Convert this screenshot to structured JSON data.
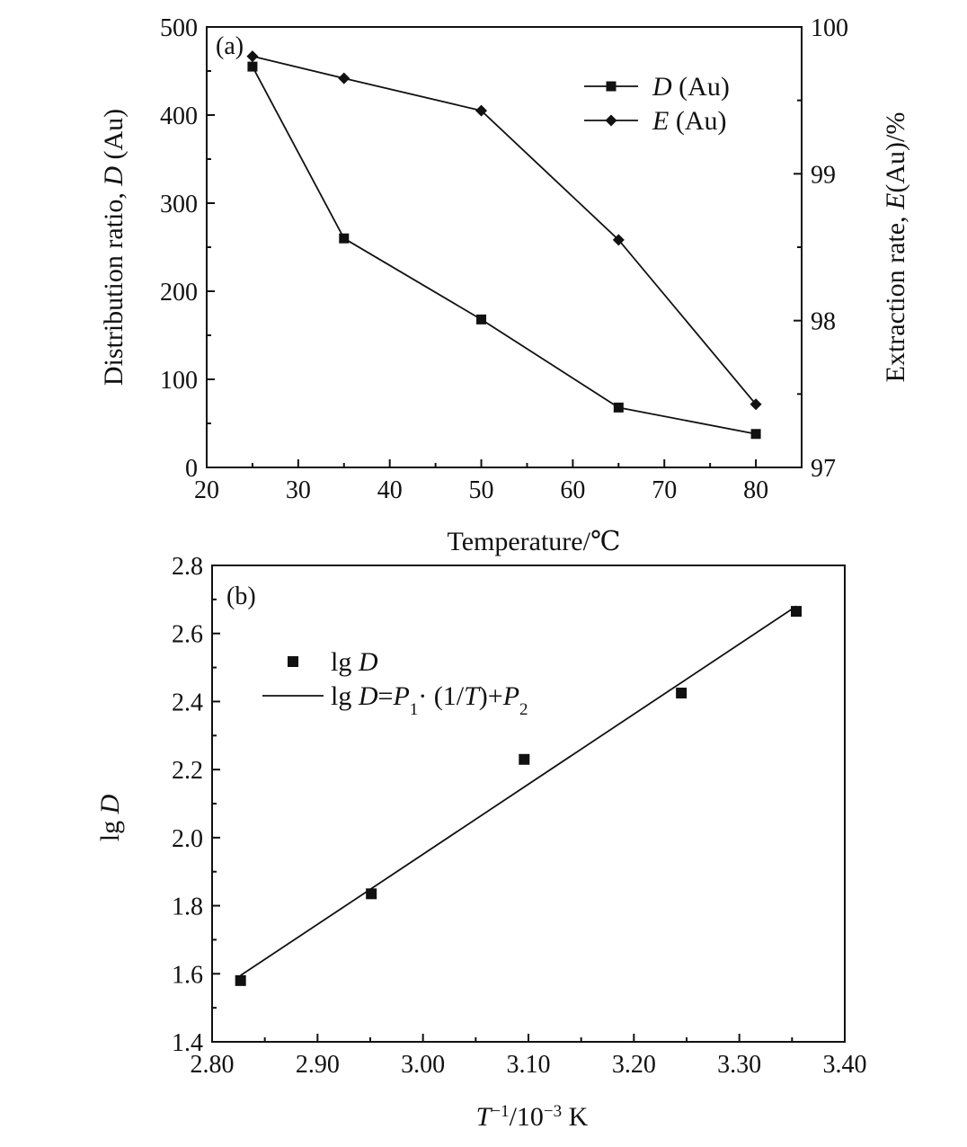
{
  "chart_data": [
    {
      "type": "line",
      "panel_label": "(a)",
      "xlabel": "Temperature/℃",
      "ylabel_left": [
        "Distribution ratio, ",
        "D",
        " (Au)"
      ],
      "ylabel_right": [
        "Extraction rate, ",
        "E",
        "(Au)/%"
      ],
      "xlim": [
        20,
        85
      ],
      "ylim_left": [
        0,
        500
      ],
      "ylim_right": [
        97,
        100
      ],
      "xticks": [
        20,
        30,
        40,
        50,
        60,
        70,
        80
      ],
      "yticks_left": [
        0,
        100,
        200,
        300,
        400,
        500
      ],
      "yticks_right": [
        97,
        98,
        99,
        100
      ],
      "grid": false,
      "legend_position": "top-right",
      "series": [
        {
          "name": [
            "D",
            " (Au)"
          ],
          "axis": "left",
          "marker": "square",
          "x": [
            25,
            35,
            50,
            65,
            80
          ],
          "y": [
            455,
            260,
            168,
            68,
            38
          ]
        },
        {
          "name": [
            "E",
            " (Au)"
          ],
          "axis": "right",
          "marker": "diamond",
          "x": [
            25,
            35,
            50,
            65,
            80
          ],
          "y": [
            99.8,
            99.65,
            99.43,
            98.55,
            97.43
          ]
        }
      ]
    },
    {
      "type": "scatter",
      "panel_label": "(b)",
      "xlabel": [
        "T",
        "−1",
        "/10",
        "−3",
        " K"
      ],
      "ylabel": [
        "lg ",
        "D"
      ],
      "xlim": [
        2.8,
        3.4
      ],
      "ylim": [
        1.4,
        2.8
      ],
      "xticks": [
        "2.80",
        "2.90",
        "3.00",
        "3.10",
        "3.20",
        "3.30",
        "3.40"
      ],
      "yticks": [
        "1.4",
        "1.6",
        "1.8",
        "2.0",
        "2.2",
        "2.4",
        "2.6",
        "2.8"
      ],
      "grid": false,
      "legend_position": "top-left",
      "points": {
        "name": [
          "lg ",
          "D"
        ],
        "x": [
          2.827,
          2.951,
          3.096,
          3.245,
          3.354
        ],
        "y": [
          1.58,
          1.835,
          2.23,
          2.425,
          2.665
        ]
      },
      "fit_line": {
        "name": [
          "lg ",
          "D",
          "=",
          "P",
          "1",
          "· (1/",
          "T",
          ")+",
          "P",
          "2"
        ],
        "x": [
          2.827,
          3.354
        ],
        "y": [
          1.595,
          2.68
        ]
      }
    }
  ]
}
